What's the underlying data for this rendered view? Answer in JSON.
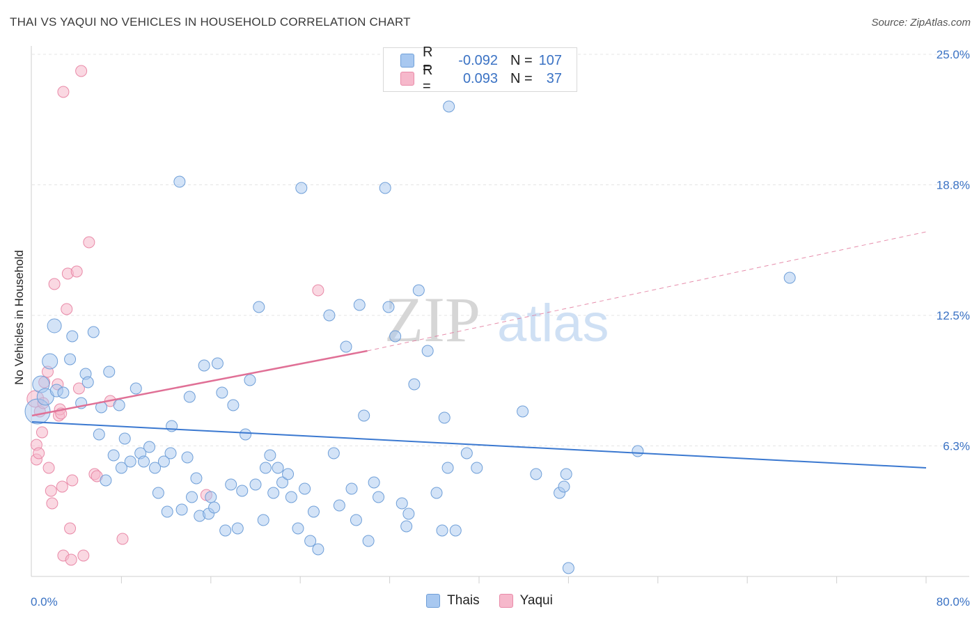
{
  "title": "THAI VS YAQUI NO VEHICLES IN HOUSEHOLD CORRELATION CHART",
  "source": "Source: ZipAtlas.com",
  "watermark": {
    "zip": "ZIP",
    "atlas": "atlas"
  },
  "legend": {
    "rows": [
      {
        "r_label": "R =",
        "r_value": "-0.092",
        "n_label": "N =",
        "n_value": "107"
      },
      {
        "r_label": "R =",
        "r_value": "0.093",
        "n_label": "N =",
        "n_value": "37"
      }
    ]
  },
  "colors": {
    "thai_fill": "#a8c8f0",
    "thai_stroke": "#6f9fd8",
    "thai_line": "#3a78d0",
    "yaqui_fill": "#f6b8cb",
    "yaqui_stroke": "#e98aa8",
    "yaqui_line": "#e07096",
    "axis_text": "#3a72c4",
    "grid": "#e4e4e4"
  },
  "chart_data": {
    "type": "scatter",
    "title": "THAI VS YAQUI NO VEHICLES IN HOUSEHOLD CORRELATION CHART",
    "xlabel": "",
    "ylabel": "No Vehicles in Household",
    "xlim": [
      0,
      80
    ],
    "ylim": [
      0,
      25
    ],
    "x_tick_labels": {
      "min": "0.0%",
      "max": "80.0%"
    },
    "y_ticks": [
      {
        "value": 6.25,
        "label": "6.3%"
      },
      {
        "value": 12.5,
        "label": "12.5%"
      },
      {
        "value": 18.75,
        "label": "18.8%"
      },
      {
        "value": 25.0,
        "label": "25.0%"
      }
    ],
    "legend_position": "top-center",
    "series": [
      {
        "name": "Thais",
        "R": -0.092,
        "N": 107,
        "trendline": {
          "x": [
            0,
            80
          ],
          "y": [
            7.4,
            5.2
          ],
          "style": "solid"
        },
        "points": [
          [
            0.5,
            7.9,
            18
          ],
          [
            0.8,
            9.2,
            12
          ],
          [
            1.2,
            8.6,
            12
          ],
          [
            2,
            12.0,
            10
          ],
          [
            1.6,
            10.3,
            11
          ],
          [
            2.2,
            8.9,
            9
          ],
          [
            2.8,
            8.8,
            8
          ],
          [
            3.6,
            11.5,
            8
          ],
          [
            3.4,
            10.4,
            8
          ],
          [
            4.4,
            8.3,
            8
          ],
          [
            4.8,
            9.7,
            8
          ],
          [
            5,
            9.3,
            8
          ],
          [
            5.5,
            11.7,
            8
          ],
          [
            6,
            6.8,
            8
          ],
          [
            6.2,
            8.1,
            8
          ],
          [
            6.6,
            4.6,
            8
          ],
          [
            6.9,
            9.8,
            8
          ],
          [
            7.3,
            5.8,
            8
          ],
          [
            7.8,
            8.2,
            8
          ],
          [
            8,
            5.2,
            8
          ],
          [
            8.3,
            6.6,
            8
          ],
          [
            8.8,
            5.5,
            8
          ],
          [
            9.3,
            9.0,
            8
          ],
          [
            9.7,
            5.9,
            8
          ],
          [
            10,
            5.5,
            8
          ],
          [
            10.5,
            6.2,
            8
          ],
          [
            11,
            5.2,
            8
          ],
          [
            11.3,
            4.0,
            8
          ],
          [
            11.8,
            5.5,
            8
          ],
          [
            12.1,
            3.1,
            8
          ],
          [
            12.4,
            5.9,
            8
          ],
          [
            12.5,
            7.2,
            8
          ],
          [
            13.2,
            18.9,
            8
          ],
          [
            13.4,
            3.2,
            8
          ],
          [
            13.9,
            5.7,
            8
          ],
          [
            14.1,
            8.6,
            8
          ],
          [
            14.3,
            3.8,
            8
          ],
          [
            14.7,
            4.7,
            8
          ],
          [
            15,
            2.9,
            8
          ],
          [
            15.4,
            10.1,
            8
          ],
          [
            15.8,
            3.0,
            8
          ],
          [
            16,
            3.8,
            8
          ],
          [
            16.3,
            3.3,
            8
          ],
          [
            16.6,
            10.2,
            8
          ],
          [
            17,
            8.8,
            8
          ],
          [
            17.3,
            2.2,
            8
          ],
          [
            17.8,
            4.4,
            8
          ],
          [
            18,
            8.2,
            8
          ],
          [
            18.4,
            2.3,
            8
          ],
          [
            18.8,
            4.1,
            8
          ],
          [
            19.1,
            6.8,
            8
          ],
          [
            19.5,
            9.4,
            8
          ],
          [
            20,
            4.4,
            8
          ],
          [
            20.3,
            12.9,
            8
          ],
          [
            20.7,
            2.7,
            8
          ],
          [
            20.9,
            5.2,
            8
          ],
          [
            21.3,
            5.8,
            8
          ],
          [
            21.6,
            4.0,
            8
          ],
          [
            22,
            5.2,
            8
          ],
          [
            22.4,
            4.5,
            8
          ],
          [
            22.9,
            4.9,
            8
          ],
          [
            23.2,
            3.8,
            8
          ],
          [
            23.8,
            2.3,
            8
          ],
          [
            24.1,
            18.6,
            8
          ],
          [
            24.4,
            4.2,
            8
          ],
          [
            24.9,
            1.7,
            8
          ],
          [
            25.2,
            3.1,
            8
          ],
          [
            25.6,
            1.3,
            8
          ],
          [
            26.6,
            12.5,
            8
          ],
          [
            27,
            5.9,
            8
          ],
          [
            27.5,
            3.4,
            8
          ],
          [
            28.1,
            11.0,
            8
          ],
          [
            28.6,
            4.2,
            8
          ],
          [
            29,
            2.7,
            8
          ],
          [
            29.3,
            13.0,
            8
          ],
          [
            29.7,
            7.7,
            8
          ],
          [
            30.1,
            1.7,
            8
          ],
          [
            30.6,
            4.5,
            8
          ],
          [
            31,
            3.8,
            8
          ],
          [
            31.6,
            18.6,
            8
          ],
          [
            31.9,
            12.9,
            8
          ],
          [
            32.5,
            11.5,
            8
          ],
          [
            33.1,
            3.5,
            8
          ],
          [
            33.5,
            2.4,
            8
          ],
          [
            33.7,
            3.0,
            8
          ],
          [
            34.2,
            9.2,
            8
          ],
          [
            34.6,
            13.7,
            8
          ],
          [
            35.4,
            10.8,
            8
          ],
          [
            36.2,
            4.0,
            8
          ],
          [
            36.7,
            2.2,
            8
          ],
          [
            36.9,
            7.6,
            8
          ],
          [
            37.2,
            5.2,
            8
          ],
          [
            37.3,
            22.5,
            8
          ],
          [
            37.9,
            2.2,
            8
          ],
          [
            38.9,
            5.9,
            8
          ],
          [
            39.8,
            5.2,
            8
          ],
          [
            43.9,
            7.9,
            8
          ],
          [
            45.1,
            4.9,
            8
          ],
          [
            47.2,
            4.0,
            8
          ],
          [
            47.6,
            4.3,
            8
          ],
          [
            47.8,
            4.9,
            8
          ],
          [
            48,
            0.4,
            8
          ],
          [
            54.2,
            6.0,
            8
          ],
          [
            67.8,
            14.3,
            8
          ]
        ]
      },
      {
        "name": "Yaqui",
        "R": 0.093,
        "N": 37,
        "trendline": {
          "x": [
            0,
            30
          ],
          "y": [
            7.7,
            10.8
          ],
          "dashed_extension": {
            "x": [
              30,
              80
            ],
            "y": [
              10.8,
              16.5
            ]
          }
        },
        "points": [
          [
            0.3,
            8.5,
            12
          ],
          [
            0.4,
            6.3,
            8
          ],
          [
            0.4,
            5.6,
            8
          ],
          [
            0.6,
            5.9,
            8
          ],
          [
            0.7,
            7.9,
            8
          ],
          [
            0.9,
            6.9,
            8
          ],
          [
            1,
            8.3,
            8
          ],
          [
            1.1,
            9.3,
            8
          ],
          [
            1.4,
            9.8,
            8
          ],
          [
            1.5,
            5.2,
            8
          ],
          [
            1.7,
            4.1,
            8
          ],
          [
            1.8,
            3.5,
            8
          ],
          [
            2,
            14.0,
            8
          ],
          [
            2.3,
            9.2,
            8
          ],
          [
            2.4,
            7.7,
            8
          ],
          [
            2.5,
            8.0,
            8
          ],
          [
            2.6,
            7.8,
            8
          ],
          [
            2.7,
            4.3,
            8
          ],
          [
            2.8,
            1.0,
            8
          ],
          [
            2.8,
            23.2,
            8
          ],
          [
            3.1,
            12.8,
            8
          ],
          [
            3.2,
            14.5,
            8
          ],
          [
            3.4,
            2.3,
            8
          ],
          [
            3.5,
            0.8,
            8
          ],
          [
            3.6,
            4.6,
            8
          ],
          [
            4,
            14.6,
            8
          ],
          [
            4.2,
            9.0,
            8
          ],
          [
            4.4,
            24.2,
            8
          ],
          [
            4.6,
            1.0,
            8
          ],
          [
            5.1,
            16.0,
            8
          ],
          [
            5.6,
            4.9,
            8
          ],
          [
            5.8,
            4.8,
            8
          ],
          [
            7,
            8.4,
            8
          ],
          [
            8.1,
            1.8,
            8
          ],
          [
            15.6,
            3.9,
            8
          ],
          [
            25.6,
            13.7,
            8
          ]
        ]
      }
    ]
  },
  "bottom_legend": {
    "thai": "Thais",
    "yaqui": "Yaqui"
  }
}
